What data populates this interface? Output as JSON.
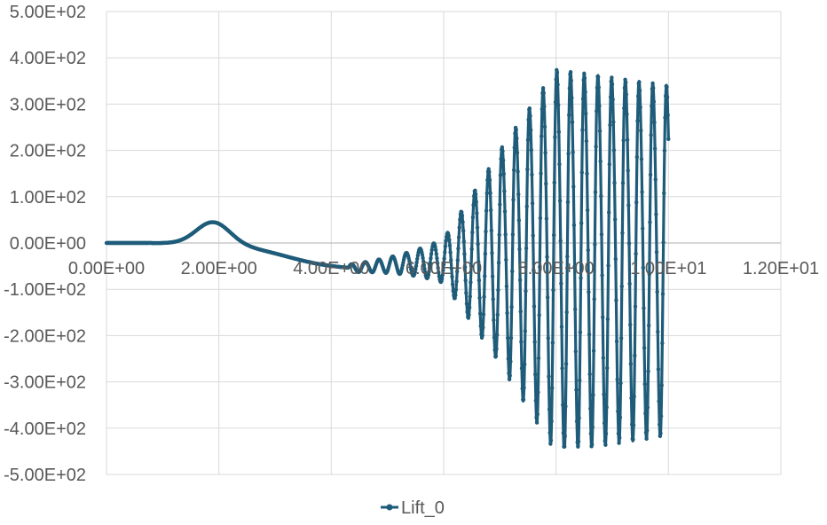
{
  "chart_data": {
    "type": "line",
    "title": "",
    "xlabel": "",
    "ylabel": "",
    "xlim": [
      0,
      12
    ],
    "ylim": [
      -500,
      500
    ],
    "x_ticks": [
      0,
      2,
      4,
      6,
      8,
      10,
      12
    ],
    "x_tick_labels": [
      "0.00E+00",
      "2.00E+00",
      "4.00E+00",
      "6.00E+00",
      "8.00E+00",
      "1.00E+01",
      "1.20E+01"
    ],
    "y_ticks": [
      500,
      400,
      300,
      200,
      100,
      0,
      -100,
      -200,
      -300,
      -400,
      -500
    ],
    "y_tick_labels": [
      "5.00E+02",
      "4.00E+02",
      "3.00E+02",
      "2.00E+02",
      "1.00E+02",
      "0.00E+00",
      "-1.00E+02",
      "-2.00E+02",
      "-3.00E+02",
      "-4.00E+02",
      "-5.00E+02"
    ],
    "grid": true,
    "legend_position": "bottom",
    "series": [
      {
        "name": "Lift_0",
        "color": "#1f5c7a",
        "marker": "circle",
        "x_range": [
          0,
          10.0
        ],
        "features": {
          "hump_peak": {
            "x": 1.9,
            "y": 48
          },
          "oscillation_onset_x": 4.3,
          "max_envelope": {
            "x": 8.0,
            "max": 388,
            "min": -433
          },
          "steady_envelope": {
            "max": 358,
            "min": -388
          }
        },
        "points": [
          [
            0.0,
            0
          ],
          [
            0.8,
            1
          ],
          [
            1.2,
            12
          ],
          [
            1.6,
            40
          ],
          [
            1.9,
            48
          ],
          [
            2.2,
            35
          ],
          [
            2.6,
            0
          ],
          [
            3.0,
            -20
          ],
          [
            3.5,
            -42
          ],
          [
            4.0,
            -50
          ],
          [
            4.5,
            -55
          ],
          [
            5.0,
            -60
          ],
          [
            5.5,
            -62
          ],
          [
            6.0,
            -55
          ],
          [
            6.5,
            "osc"
          ],
          [
            7.0,
            "osc"
          ],
          [
            7.5,
            "osc"
          ],
          [
            8.0,
            "osc"
          ],
          [
            9.0,
            "osc"
          ],
          [
            10.0,
            "osc"
          ]
        ]
      }
    ]
  }
}
